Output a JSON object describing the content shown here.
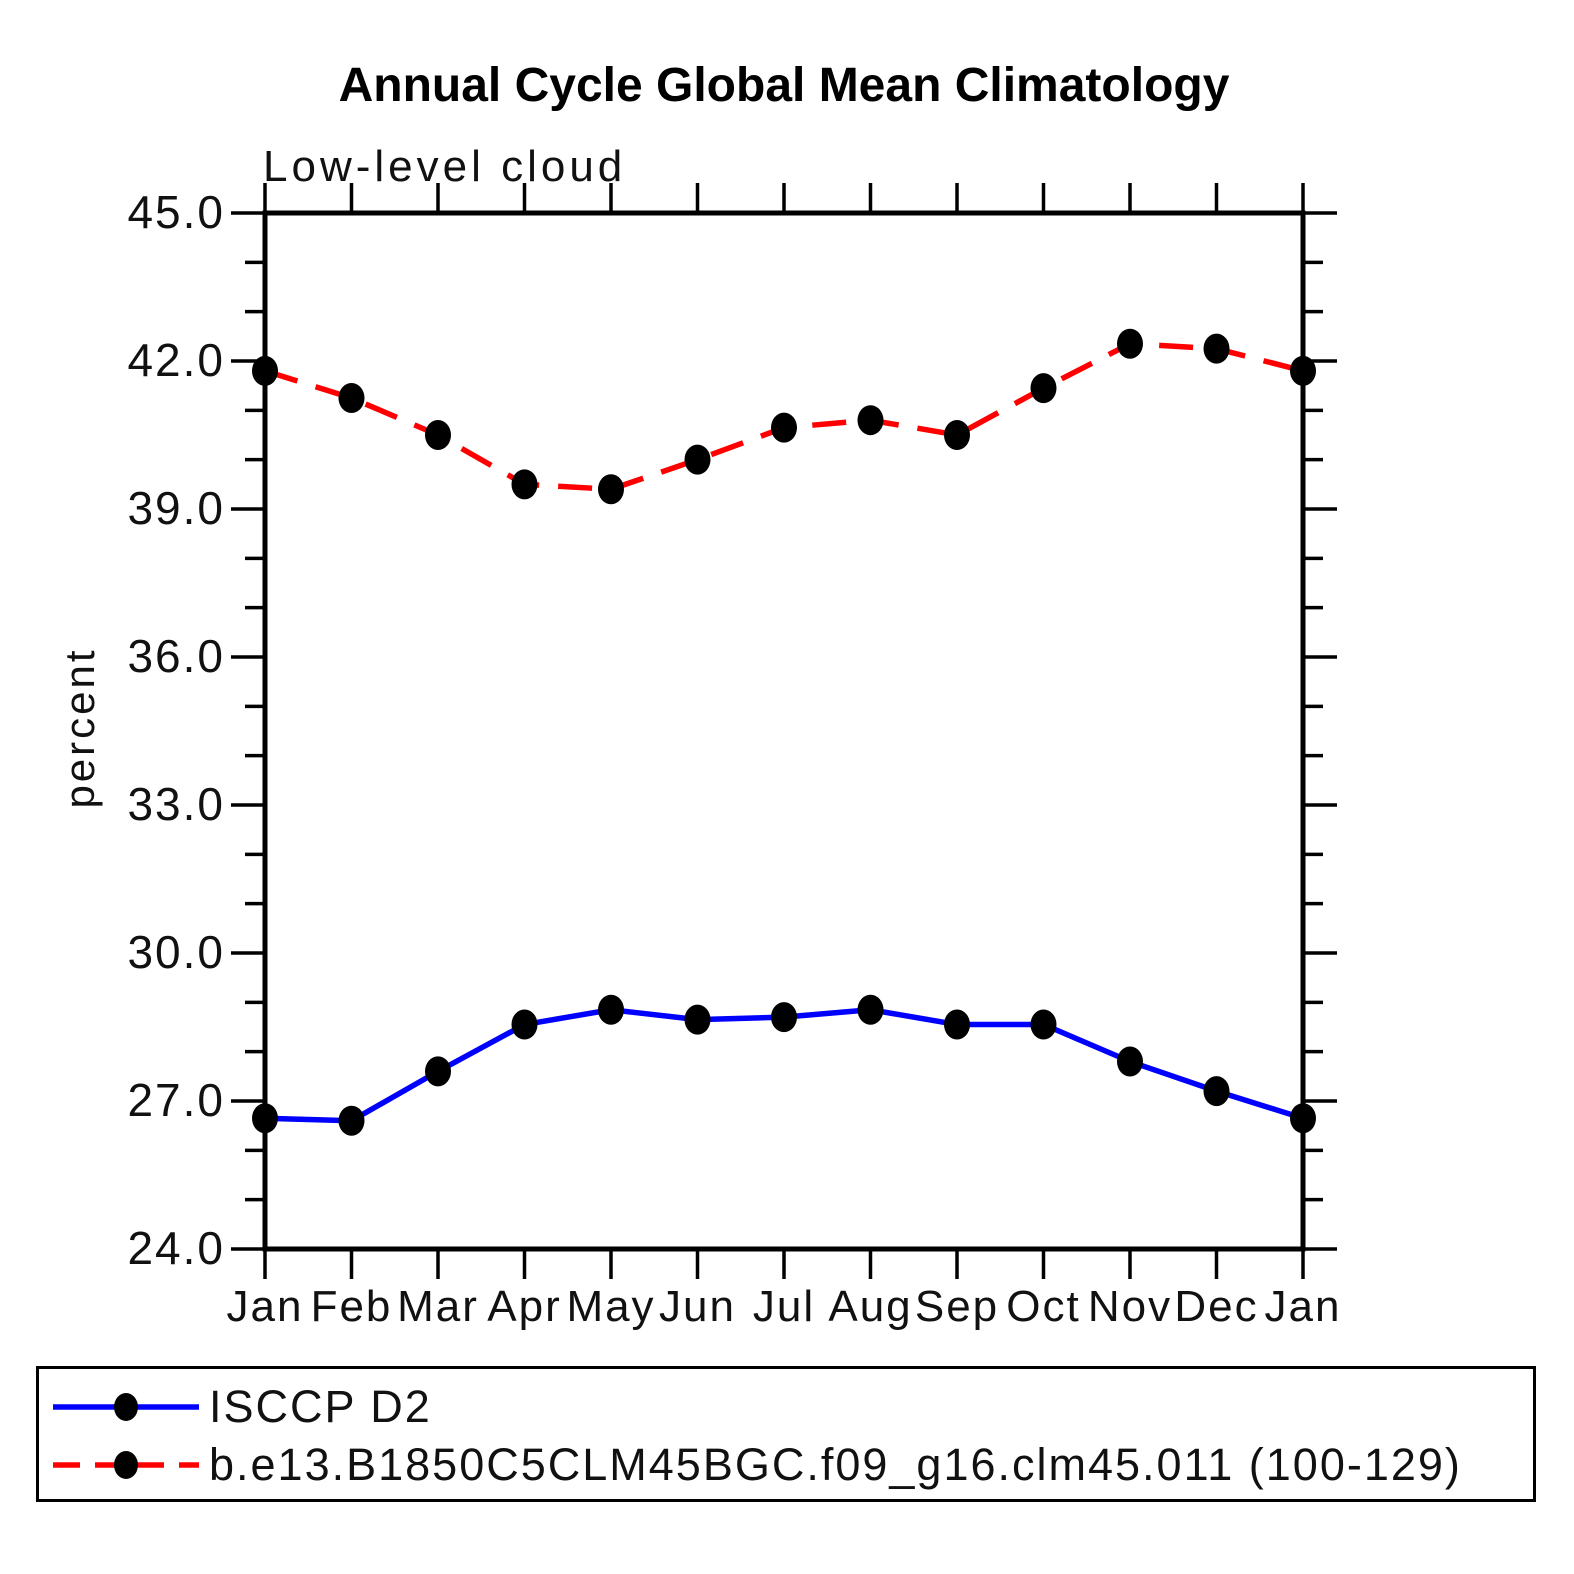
{
  "title": "Annual Cycle Global Mean Climatology",
  "subtitle": "Low-level cloud",
  "ylabel": "percent",
  "legend": {
    "items": [
      {
        "label": "ISCCP D2",
        "color": "#0000ff",
        "style": "solid"
      },
      {
        "label": "b.e13.B1850C5CLM45BGC.f09_g16.clm45.011 (100-129)",
        "color": "#ff0000",
        "style": "dashed"
      }
    ]
  },
  "chart_data": {
    "type": "line",
    "title": "Annual Cycle Global Mean Climatology",
    "subtitle": "Low-level cloud",
    "xlabel": "",
    "ylabel": "percent",
    "categories": [
      "Jan",
      "Feb",
      "Mar",
      "Apr",
      "May",
      "Jun",
      "Jul",
      "Aug",
      "Sep",
      "Oct",
      "Nov",
      "Dec",
      "Jan"
    ],
    "series": [
      {
        "name": "ISCCP D2",
        "color": "#0000ff",
        "style": "solid",
        "marker": "filled-circle",
        "marker_color": "#000000",
        "values": [
          26.65,
          26.6,
          27.6,
          28.55,
          28.85,
          28.65,
          28.7,
          28.85,
          28.55,
          28.55,
          27.8,
          27.2,
          26.65
        ]
      },
      {
        "name": "b.e13.B1850C5CLM45BGC.f09_g16.clm45.011 (100-129)",
        "color": "#ff0000",
        "style": "dashed",
        "marker": "filled-circle",
        "marker_color": "#000000",
        "values": [
          41.8,
          41.25,
          40.5,
          39.5,
          39.4,
          40.0,
          40.65,
          40.8,
          40.5,
          41.45,
          42.35,
          42.25,
          41.8
        ]
      }
    ],
    "ylim": [
      24.0,
      45.0
    ],
    "yticks_major": [
      24.0,
      27.0,
      30.0,
      33.0,
      36.0,
      39.0,
      42.0,
      45.0
    ],
    "ytick_labels": [
      "24.0",
      "27.0",
      "30.0",
      "33.0",
      "36.0",
      "39.0",
      "42.0",
      "45.0"
    ],
    "ytick_minor_interval": 1.0,
    "grid": false,
    "frame": "box",
    "legend_position": "bottom-box"
  }
}
